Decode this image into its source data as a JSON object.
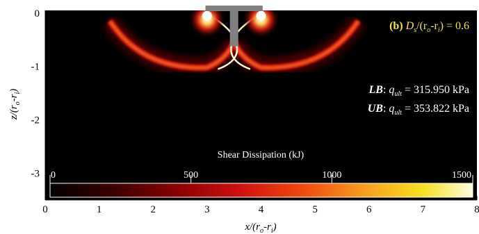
{
  "chart_data": {
    "type": "heatmap",
    "title": "",
    "panel": {
      "prefix": "(b)",
      "label": "D",
      "sub": "s",
      "mid": "/(r",
      "sub2": "o",
      "dash": "-r",
      "sub3": "i",
      "end": ") = 0.6"
    },
    "xlabel": {
      "main": "x/(r",
      "sub1": "o",
      "mid": "-r",
      "sub2": "i",
      "end": ")"
    },
    "ylabel": {
      "main": "z/(r",
      "sub1": "o",
      "mid": "-r",
      "sub2": "i",
      "end": ")"
    },
    "xlim": [
      0,
      8
    ],
    "ylim": [
      -3.5,
      0.05
    ],
    "x_ticks": [
      0,
      1,
      2,
      3,
      4,
      5,
      6,
      7,
      8
    ],
    "x_tick_labels": [
      "0",
      "1",
      "2",
      "3",
      "4",
      "5",
      "6",
      "7",
      "8"
    ],
    "y_ticks": [
      0,
      -1,
      -2,
      -3
    ],
    "y_tick_labels": [
      "0",
      "-1",
      "-2",
      "-3"
    ],
    "colorbar": {
      "title": "Shear Dissipation (kJ)",
      "range": [
        0,
        1500
      ],
      "ticks": [
        0,
        500,
        1000,
        1500
      ],
      "tick_labels": [
        "0",
        "500",
        "1000",
        "1500"
      ],
      "colors": [
        "#000000",
        "#3a0000",
        "#8a0000",
        "#d01010",
        "#f04a10",
        "#f8a020",
        "#f5e020",
        "#fffde0"
      ]
    },
    "footing": {
      "x_center": 3.5,
      "half_width": 0.5
    },
    "failure_mechanism": [
      {
        "name": "left-lobe",
        "x_from": 1.2,
        "x_mid": 3.0,
        "x_to": 3.5,
        "z_bottom": -1.02,
        "z_top": 0.0
      },
      {
        "name": "right-lobe",
        "x_from": 3.5,
        "x_mid": 4.0,
        "x_to": 5.8,
        "z_bottom": -1.02,
        "z_top": 0.0
      }
    ],
    "annotations": [
      {
        "bold": "LB",
        "q": "q",
        "sub": "ult",
        "value": " = 315.950 kPa"
      },
      {
        "bold": "UB",
        "q": "q",
        "sub": "ult",
        "value": " = 353.822 kPa"
      }
    ]
  }
}
